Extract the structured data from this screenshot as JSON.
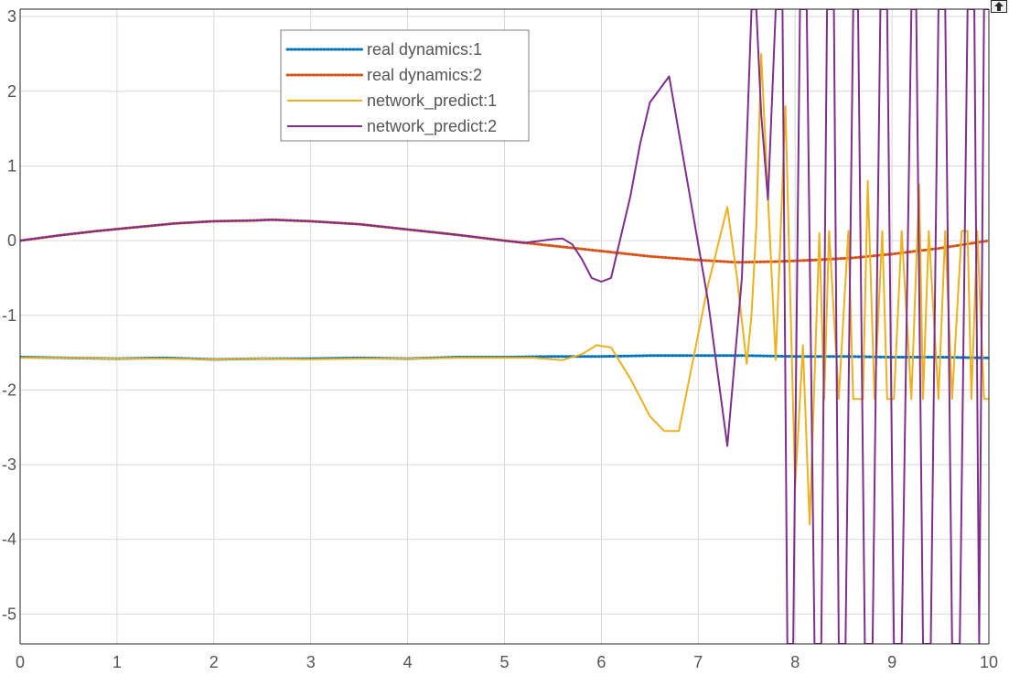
{
  "colors": {
    "real_1": "#0072BD",
    "real_2": "#D95319",
    "pred_1": "#EDB120",
    "pred_2": "#7E2F8E",
    "grid": "#d9d9d9",
    "axis": "#262626",
    "tick_text": "#555555"
  },
  "toolbar": {
    "restore_icon": "restore-view-icon"
  },
  "chart_data": {
    "type": "line",
    "title": "",
    "xlabel": "",
    "ylabel": "",
    "xlim": [
      0,
      10
    ],
    "ylim": [
      -5.4,
      3.1
    ],
    "grid": true,
    "legend_position": "top-center",
    "x_ticks": [
      0,
      1,
      2,
      3,
      4,
      5,
      6,
      7,
      8,
      9,
      10
    ],
    "y_ticks": [
      -5,
      -4,
      -3,
      -2,
      -1,
      0,
      1,
      2,
      3
    ],
    "series": [
      {
        "name": "real dynamics:1",
        "style": "dotted",
        "color_key": "real_1",
        "x": [
          0,
          0.5,
          1,
          1.5,
          2,
          2.5,
          3,
          3.5,
          4,
          4.5,
          5,
          5.5,
          6,
          6.5,
          7,
          7.5,
          8,
          8.5,
          9,
          9.5,
          10
        ],
        "y": [
          -1.56,
          -1.57,
          -1.58,
          -1.57,
          -1.59,
          -1.58,
          -1.58,
          -1.57,
          -1.58,
          -1.56,
          -1.56,
          -1.55,
          -1.55,
          -1.54,
          -1.54,
          -1.54,
          -1.55,
          -1.55,
          -1.56,
          -1.56,
          -1.57
        ]
      },
      {
        "name": "real dynamics:2",
        "style": "dotted",
        "color_key": "real_2",
        "x": [
          0,
          0.4,
          0.8,
          1.2,
          1.6,
          2,
          2.4,
          2.6,
          3,
          3.5,
          4,
          4.5,
          5,
          5.5,
          6,
          6.5,
          7,
          7.4,
          7.8,
          8.2,
          8.6,
          9,
          9.5,
          10
        ],
        "y": [
          0.0,
          0.07,
          0.13,
          0.18,
          0.23,
          0.26,
          0.27,
          0.28,
          0.26,
          0.22,
          0.15,
          0.08,
          0.0,
          -0.07,
          -0.14,
          -0.21,
          -0.26,
          -0.29,
          -0.28,
          -0.26,
          -0.23,
          -0.18,
          -0.1,
          0.0
        ]
      },
      {
        "name": "network_predict:1",
        "style": "solid",
        "color_key": "pred_1",
        "x": [
          0,
          0.5,
          1,
          1.5,
          2,
          2.5,
          3,
          3.5,
          4,
          4.5,
          5,
          5.3,
          5.6,
          5.8,
          5.95,
          6.1,
          6.3,
          6.5,
          6.65,
          6.8,
          7.1,
          7.3,
          7.4,
          7.5,
          7.55,
          7.6,
          7.65,
          7.8,
          7.9,
          8.0,
          8.08,
          8.15,
          8.25,
          8.3,
          8.35,
          8.45,
          8.55,
          8.6,
          8.65,
          8.7,
          8.75,
          8.82,
          8.9,
          8.95,
          9.02,
          9.1,
          9.2,
          9.28,
          9.32,
          9.38,
          9.48,
          9.55,
          9.62,
          9.72,
          9.78,
          9.82,
          9.88,
          9.95,
          10
        ],
        "y": [
          -1.57,
          -1.57,
          -1.58,
          -1.58,
          -1.59,
          -1.58,
          -1.59,
          -1.58,
          -1.58,
          -1.57,
          -1.57,
          -1.57,
          -1.6,
          -1.52,
          -1.4,
          -1.43,
          -1.85,
          -2.35,
          -2.55,
          -2.55,
          -0.6,
          0.45,
          -0.5,
          -1.65,
          -1.0,
          0.2,
          2.5,
          -1.6,
          1.8,
          -3.3,
          -1.4,
          -3.8,
          0.1,
          -2.12,
          0.13,
          -2.12,
          0.13,
          -2.12,
          -2.12,
          -2.12,
          0.8,
          -2.12,
          0.13,
          -2.12,
          -2.12,
          0.13,
          -2.12,
          0.75,
          -2.12,
          0.13,
          -2.12,
          0.13,
          -2.12,
          0.13,
          0.13,
          -2.12,
          0.13,
          -2.12,
          -2.12
        ]
      },
      {
        "name": "network_predict:2",
        "style": "solid",
        "color_key": "pred_2",
        "x": [
          0,
          0.4,
          0.8,
          1.2,
          1.6,
          2,
          2.4,
          2.6,
          3,
          3.5,
          4,
          4.5,
          5,
          5.2,
          5.5,
          5.6,
          5.7,
          5.8,
          5.9,
          6.0,
          6.1,
          6.3,
          6.4,
          6.5,
          6.7,
          6.9,
          7.1,
          7.3,
          7.45,
          7.55,
          7.6,
          7.65,
          7.72,
          7.8,
          7.87,
          7.92,
          7.98,
          8.05,
          8.12,
          8.2,
          8.27,
          8.33,
          8.4,
          8.45,
          8.52,
          8.6,
          8.65,
          8.72,
          8.8,
          8.88,
          8.95,
          9.02,
          9.1,
          9.2,
          9.25,
          9.32,
          9.4,
          9.48,
          9.55,
          9.62,
          9.7,
          9.78,
          9.85,
          9.9,
          9.95,
          10
        ],
        "y": [
          0.0,
          0.07,
          0.13,
          0.18,
          0.23,
          0.26,
          0.27,
          0.28,
          0.26,
          0.22,
          0.15,
          0.08,
          0.0,
          -0.03,
          0.02,
          0.03,
          -0.05,
          -0.25,
          -0.5,
          -0.55,
          -0.5,
          0.6,
          1.3,
          1.85,
          2.2,
          0.7,
          -0.8,
          -2.75,
          -0.5,
          3.1,
          3.1,
          1.7,
          0.55,
          3.1,
          3.1,
          -5.4,
          -5.4,
          3.1,
          3.1,
          -5.4,
          -5.4,
          3.1,
          3.1,
          -5.4,
          -5.4,
          3.1,
          3.1,
          -5.4,
          -5.4,
          3.1,
          3.1,
          -5.4,
          -5.4,
          3.1,
          3.1,
          -5.4,
          -5.4,
          3.1,
          3.1,
          -5.4,
          -5.4,
          3.1,
          3.1,
          -5.4,
          3.1,
          3.1
        ]
      }
    ]
  }
}
